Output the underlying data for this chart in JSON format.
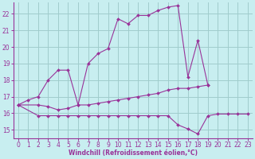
{
  "xlabel": "Windchill (Refroidissement éolien,°C)",
  "xlim": [
    -0.5,
    23.5
  ],
  "ylim": [
    14.5,
    22.7
  ],
  "xticks": [
    0,
    1,
    2,
    3,
    4,
    5,
    6,
    7,
    8,
    9,
    10,
    11,
    12,
    13,
    14,
    15,
    16,
    17,
    18,
    19,
    20,
    21,
    22,
    23
  ],
  "yticks": [
    15,
    16,
    17,
    18,
    19,
    20,
    21,
    22
  ],
  "bg_color": "#c8eef0",
  "grid_color": "#a0cccc",
  "line_color": "#993399",
  "line1_x": [
    0,
    1,
    2,
    3,
    4,
    5,
    6,
    7,
    8,
    9,
    10,
    11,
    12,
    13,
    14,
    15,
    16,
    17,
    18,
    19
  ],
  "line1_y": [
    16.5,
    16.8,
    17.0,
    18.0,
    18.6,
    18.6,
    16.5,
    19.0,
    19.6,
    19.9,
    21.7,
    21.4,
    21.9,
    21.9,
    22.2,
    22.4,
    22.5,
    18.2,
    20.4,
    17.7
  ],
  "line2_x": [
    0,
    2,
    3,
    4,
    5,
    6,
    7,
    8,
    9,
    10,
    11,
    12,
    13,
    14,
    15,
    16,
    17,
    18,
    19
  ],
  "line2_y": [
    16.5,
    16.5,
    16.4,
    16.2,
    16.3,
    16.5,
    16.5,
    16.6,
    16.7,
    16.8,
    16.9,
    17.0,
    17.1,
    17.2,
    17.4,
    17.5,
    17.5,
    17.6,
    17.7
  ],
  "line3_x": [
    0,
    2,
    3,
    4,
    5,
    6,
    7,
    8,
    9,
    10,
    11,
    12,
    13,
    14,
    15,
    16,
    17,
    18,
    19,
    20,
    21,
    22,
    23
  ],
  "line3_y": [
    16.5,
    15.85,
    15.85,
    15.85,
    15.85,
    15.85,
    15.85,
    15.85,
    15.85,
    15.85,
    15.85,
    15.85,
    15.85,
    15.85,
    15.85,
    15.3,
    15.05,
    14.75,
    15.85,
    15.95,
    15.95,
    15.95,
    15.95
  ],
  "tick_fontsize": 5.5,
  "xlabel_fontsize": 5.5
}
